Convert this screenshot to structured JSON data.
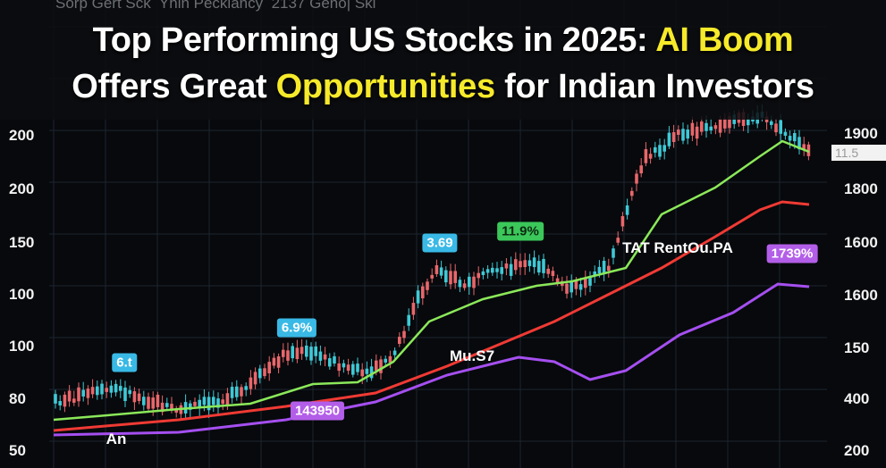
{
  "header": {
    "watermark": "Sorp Gert Sck  Yhin Pecklancy  2137 Geno| Ski",
    "title": {
      "line1": {
        "text": "Top Performing US Stocks in 2025: ",
        "highlight": "AI Boom"
      },
      "line2": {
        "before": "Offers Great ",
        "highlight": "Opportunities",
        "after": " for Indian Investors"
      }
    }
  },
  "left_axis": [
    "200",
    "200",
    "150",
    "100",
    "100",
    "80",
    "50"
  ],
  "right_axis": [
    "1900",
    "1800",
    "1600",
    "1600",
    "150",
    "400",
    "200"
  ],
  "price_tag": "11.5",
  "badges": [
    {
      "text": "6.t",
      "style": "cyan"
    },
    {
      "text": "6.9%",
      "style": "cyan"
    },
    {
      "text": "3.69",
      "style": "cyan"
    },
    {
      "text": "11.9%",
      "style": "green"
    },
    {
      "text": "1739%",
      "style": "purple"
    },
    {
      "text": "143950",
      "style": "purple"
    }
  ],
  "labels": [
    "TAT RentOu.PA",
    "Mu.S7",
    "An"
  ]
}
